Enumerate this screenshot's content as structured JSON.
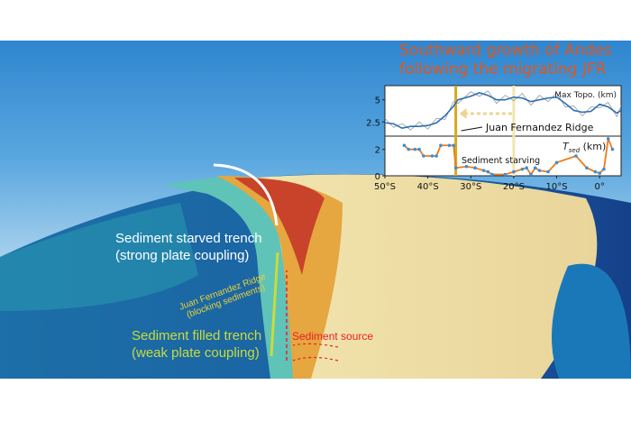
{
  "figure": {
    "title_line1": "Southward growth of Andes",
    "title_line2": "following the migrating JFR",
    "labels": {
      "starved": "Sediment starved trench",
      "starved_sub": "(strong plate coupling)",
      "filled": "Sediment filled trench",
      "filled_sub": "(weak plate coupling)",
      "ridge": "Juan Fernandez Ridge",
      "ridge_sub": "(blocking sediments)",
      "source": "Sediment source"
    },
    "colors": {
      "title": "#e0561c",
      "starved": "#ffffff",
      "filled": "#c8dc3c",
      "ridge": "#e8d23a",
      "source": "#e8202a"
    }
  },
  "chart_data": {
    "type": "line",
    "xlabel": "",
    "x_ticks": [
      "50°S",
      "40°S",
      "30°S",
      "20°S",
      "10°S",
      "0°"
    ],
    "xlim": [
      -50,
      5
    ],
    "panels": [
      {
        "label": "Max Topo. (km)",
        "y_ticks": [
          "5",
          "2.5"
        ],
        "ylim": [
          0.9,
          6.6
        ],
        "series": [
          {
            "color": "#2b6fb5",
            "x": [
              -50,
              -48,
              -46,
              -44,
              -42,
              -40,
              -38,
              -36,
              -34,
              -33,
              -30,
              -28,
              -26,
              -24,
              -22,
              -20,
              -18,
              -16,
              -14,
              -12,
              -10,
              -8,
              -6,
              -4,
              -2,
              0,
              2,
              4,
              5
            ],
            "y": [
              2.4,
              2.3,
              1.8,
              2.0,
              2.0,
              2.1,
              2.4,
              3.2,
              4.3,
              5.0,
              5.4,
              5.8,
              5.5,
              5.0,
              5.0,
              5.3,
              5.2,
              4.8,
              5.0,
              5.2,
              5.3,
              4.6,
              3.8,
              3.6,
              3.7,
              4.5,
              4.2,
              3.5,
              3.8
            ]
          }
        ]
      },
      {
        "label": "T",
        "label_sub": "sed",
        "label_unit": "(km)",
        "y_ticks": [
          "2",
          "0"
        ],
        "ylim": [
          0,
          3
        ],
        "series": [
          {
            "color": "#f07a18",
            "marker_color": "#3a8fd8",
            "x": [
              -45.5,
              -44.5,
              -43,
              -42,
              -41,
              -39,
              -38,
              -37,
              -35,
              -34,
              -33.5,
              -31,
              -29,
              -27,
              -26,
              -25,
              -22,
              -20,
              -18,
              -17,
              -16,
              -15,
              -14,
              -12,
              -10,
              -5.5,
              -3,
              -1,
              0,
              1,
              2,
              3
            ],
            "y": [
              2.3,
              2.0,
              2.0,
              2.0,
              1.5,
              1.5,
              1.5,
              2.3,
              2.3,
              2.3,
              0.6,
              0.7,
              0.6,
              0.4,
              0.3,
              0.1,
              0.1,
              0.3,
              0.5,
              0.6,
              0.1,
              0.6,
              0.4,
              0.3,
              1.0,
              1.5,
              0.6,
              0.3,
              0.2,
              0.5,
              2.8,
              2.0
            ]
          }
        ]
      }
    ],
    "annotations": {
      "ridge": "Juan Fernandez Ridge",
      "starving": "Sediment starving"
    },
    "ridge_now": -33.5,
    "ridge_past": -20
  }
}
